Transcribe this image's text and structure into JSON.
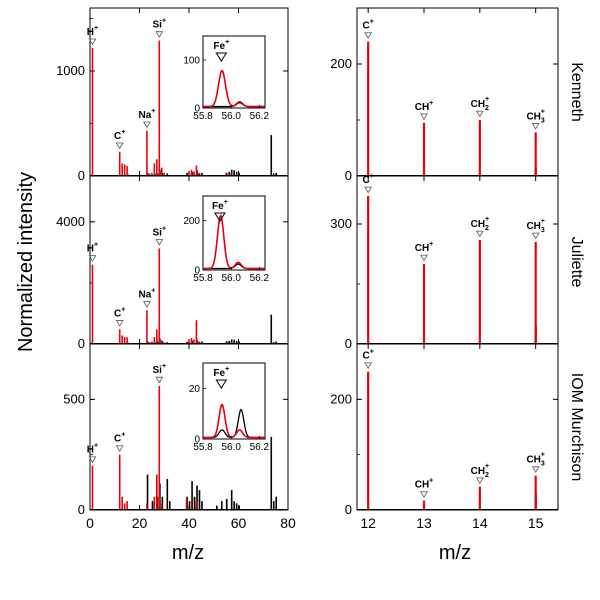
{
  "figure": {
    "ylabel": "Normalized intensity",
    "xlabel_left": "m/z",
    "xlabel_right": "m/z",
    "sample_labels": [
      "Kenneth",
      "Juliette",
      "IOM Murchison"
    ]
  },
  "colors": {
    "sample": "#e8000b",
    "reference": "#000000"
  },
  "chart_data": [
    {
      "type": "bar",
      "panel": "left-1",
      "sample": "Kenneth",
      "xlim": [
        0,
        80
      ],
      "ylim": [
        0,
        1600
      ],
      "yticks": [
        0,
        1000
      ],
      "red_peaks": [
        [
          1,
          1220
        ],
        [
          12,
          230
        ],
        [
          13,
          120
        ],
        [
          14,
          110
        ],
        [
          15,
          95
        ],
        [
          23,
          430
        ],
        [
          24,
          25
        ],
        [
          25,
          30
        ],
        [
          26,
          120
        ],
        [
          27,
          160
        ],
        [
          28,
          1290
        ],
        [
          29,
          80
        ],
        [
          30,
          30
        ],
        [
          40,
          45
        ],
        [
          41,
          60
        ],
        [
          42,
          45
        ],
        [
          43,
          100
        ],
        [
          44,
          30
        ],
        [
          55,
          30
        ],
        [
          57,
          25
        ]
      ],
      "black_peaks": [
        [
          15,
          20
        ],
        [
          23,
          25
        ],
        [
          26,
          20
        ],
        [
          27,
          25
        ],
        [
          28,
          60
        ],
        [
          29,
          30
        ],
        [
          31,
          25
        ],
        [
          39,
          30
        ],
        [
          41,
          40
        ],
        [
          43,
          55
        ],
        [
          44,
          25
        ],
        [
          45,
          30
        ],
        [
          55,
          30
        ],
        [
          56,
          40
        ],
        [
          57,
          60
        ],
        [
          58,
          55
        ],
        [
          59,
          40
        ],
        [
          60,
          30
        ],
        [
          73,
          390
        ],
        [
          74,
          25
        ],
        [
          75,
          30
        ]
      ],
      "labels": [
        {
          "ion": "H",
          "sup": "+",
          "x": 1,
          "y": 1220
        },
        {
          "ion": "C",
          "sup": "+",
          "x": 12,
          "y": 230
        },
        {
          "ion": "Na",
          "sup": "+",
          "x": 23,
          "y": 430
        },
        {
          "ion": "Si",
          "sup": "+",
          "x": 28,
          "y": 1290
        }
      ],
      "inset": {
        "label": "Fe",
        "label_sup": "+",
        "xlim": [
          55.8,
          56.24
        ],
        "ylim": [
          0,
          150
        ],
        "xticks": [
          55.8,
          56.0,
          56.2
        ],
        "yticks": [
          0,
          100
        ],
        "xtick_labels": [
          "55.8",
          "56.0",
          "56.2"
        ],
        "ytick_labels": [
          "0",
          "100"
        ],
        "marker_x": 55.93,
        "red_peaks": [
          {
            "center": 55.935,
            "height": 75,
            "width": 0.035
          },
          {
            "center": 56.06,
            "height": 10,
            "width": 0.03
          }
        ],
        "black_peaks": [
          {
            "center": 56.06,
            "height": 8,
            "width": 0.03
          }
        ]
      }
    },
    {
      "type": "bar",
      "panel": "left-2",
      "sample": "Juliette",
      "xlim": [
        0,
        80
      ],
      "ylim": [
        0,
        5500
      ],
      "yticks": [
        0,
        4000
      ],
      "red_peaks": [
        [
          1,
          2600
        ],
        [
          12,
          480
        ],
        [
          13,
          280
        ],
        [
          14,
          230
        ],
        [
          15,
          220
        ],
        [
          23,
          1100
        ],
        [
          24,
          60
        ],
        [
          25,
          80
        ],
        [
          26,
          230
        ],
        [
          27,
          480
        ],
        [
          28,
          3130
        ],
        [
          29,
          120
        ],
        [
          30,
          45
        ],
        [
          40,
          140
        ],
        [
          41,
          200
        ],
        [
          42,
          150
        ],
        [
          43,
          780
        ],
        [
          44,
          80
        ],
        [
          55,
          70
        ],
        [
          57,
          50
        ]
      ],
      "black_peaks": [
        [
          15,
          60
        ],
        [
          23,
          80
        ],
        [
          26,
          60
        ],
        [
          27,
          90
        ],
        [
          28,
          180
        ],
        [
          29,
          90
        ],
        [
          31,
          60
        ],
        [
          39,
          70
        ],
        [
          41,
          110
        ],
        [
          43,
          140
        ],
        [
          44,
          70
        ],
        [
          45,
          80
        ],
        [
          55,
          90
        ],
        [
          56,
          100
        ],
        [
          57,
          150
        ],
        [
          58,
          140
        ],
        [
          59,
          100
        ],
        [
          60,
          80
        ],
        [
          73,
          960
        ],
        [
          74,
          60
        ],
        [
          75,
          80
        ]
      ],
      "labels": [
        {
          "ion": "H",
          "sup": "+",
          "x": 1,
          "y": 2600
        },
        {
          "ion": "C",
          "sup": "+",
          "x": 12,
          "y": 480
        },
        {
          "ion": "Na",
          "sup": "+",
          "x": 23,
          "y": 1100
        },
        {
          "ion": "Si",
          "sup": "+",
          "x": 28,
          "y": 3130
        }
      ],
      "inset": {
        "label": "Fe",
        "label_sup": "+",
        "xlim": [
          55.8,
          56.24
        ],
        "ylim": [
          0,
          300
        ],
        "xticks": [
          55.8,
          56.0,
          56.2
        ],
        "yticks": [
          0,
          200
        ],
        "xtick_labels": [
          "55.8",
          "56.0",
          "56.2"
        ],
        "ytick_labels": [
          "0",
          "200"
        ],
        "marker_x": 55.92,
        "red_peaks": [
          {
            "center": 55.925,
            "height": 215,
            "width": 0.032
          },
          {
            "center": 56.05,
            "height": 25,
            "width": 0.03
          }
        ],
        "black_peaks": [
          {
            "center": 56.05,
            "height": 18,
            "width": 0.03
          }
        ]
      }
    },
    {
      "type": "bar",
      "panel": "left-3",
      "sample": "IOM Murchison",
      "xlim": [
        0,
        80
      ],
      "ylim": [
        0,
        750
      ],
      "yticks": [
        0,
        500
      ],
      "red_peaks": [
        [
          1,
          200
        ],
        [
          12,
          250
        ],
        [
          13,
          60
        ],
        [
          14,
          30
        ],
        [
          15,
          40
        ],
        [
          23,
          30
        ],
        [
          26,
          60
        ],
        [
          27,
          160
        ],
        [
          28,
          560
        ],
        [
          29,
          30
        ],
        [
          39,
          50
        ],
        [
          43,
          40
        ]
      ],
      "black_peaks": [
        [
          23,
          160
        ],
        [
          25,
          40
        ],
        [
          27,
          60
        ],
        [
          28,
          120
        ],
        [
          29,
          60
        ],
        [
          31,
          140
        ],
        [
          32,
          40
        ],
        [
          39,
          60
        ],
        [
          40,
          40
        ],
        [
          41,
          130
        ],
        [
          42,
          60
        ],
        [
          43,
          110
        ],
        [
          44,
          90
        ],
        [
          45,
          40
        ],
        [
          51,
          20
        ],
        [
          53,
          40
        ],
        [
          55,
          50
        ],
        [
          57,
          90
        ],
        [
          58,
          40
        ],
        [
          59,
          30
        ],
        [
          60,
          20
        ],
        [
          73,
          330
        ],
        [
          74,
          40
        ],
        [
          75,
          60
        ]
      ],
      "labels": [
        {
          "ion": "H",
          "sup": "+",
          "x": 1,
          "y": 200
        },
        {
          "ion": "C",
          "sup": "+",
          "x": 12,
          "y": 250
        },
        {
          "ion": "Si",
          "sup": "+",
          "x": 28,
          "y": 560
        }
      ],
      "inset": {
        "label": "Fe",
        "label_sup": "+",
        "xlim": [
          55.8,
          56.24
        ],
        "ylim": [
          0,
          30
        ],
        "xticks": [
          55.8,
          56.0,
          56.2
        ],
        "yticks": [
          0,
          20
        ],
        "xtick_labels": [
          "55.8",
          "56.0",
          "56.2"
        ],
        "ytick_labels": [
          "0",
          "20"
        ],
        "marker_x": 55.93,
        "red_peaks": [
          {
            "center": 55.935,
            "height": 13,
            "width": 0.03
          },
          {
            "center": 56.06,
            "height": 3,
            "width": 0.03
          }
        ],
        "black_peaks": [
          {
            "center": 55.935,
            "height": 3,
            "width": 0.03
          },
          {
            "center": 56.07,
            "height": 11,
            "width": 0.028
          }
        ]
      }
    },
    {
      "type": "bar",
      "panel": "right-1",
      "sample": "Kenneth",
      "xlim": [
        11.8,
        15.4
      ],
      "ylim": [
        0,
        300
      ],
      "yticks": [
        0,
        200
      ],
      "red_peaks": [
        [
          12,
          240
        ],
        [
          13,
          95
        ],
        [
          14,
          100
        ],
        [
          15,
          78
        ]
      ],
      "black_peaks": [
        [
          15,
          15
        ]
      ],
      "labels": [
        {
          "ion": "C",
          "sup": "+",
          "x": 12,
          "y": 240
        },
        {
          "ion": "CH",
          "sup": "+",
          "x": 13,
          "y": 95
        },
        {
          "ion": "CH",
          "sub": "2",
          "sup": "+",
          "x": 14,
          "y": 100
        },
        {
          "ion": "CH",
          "sub": "3",
          "sup": "+",
          "x": 15,
          "y": 78
        }
      ]
    },
    {
      "type": "bar",
      "panel": "right-2",
      "sample": "Juliette",
      "xlim": [
        11.8,
        15.4
      ],
      "ylim": [
        0,
        420
      ],
      "yticks": [
        0,
        300
      ],
      "red_peaks": [
        [
          12,
          370
        ],
        [
          13,
          200
        ],
        [
          14,
          260
        ],
        [
          15,
          255
        ]
      ],
      "black_peaks": [
        [
          15,
          45
        ]
      ],
      "labels": [
        {
          "ion": "C",
          "sup": "+",
          "x": 12,
          "y": 370
        },
        {
          "ion": "CH",
          "sup": "+",
          "x": 13,
          "y": 200
        },
        {
          "ion": "CH",
          "sub": "2",
          "sup": "+",
          "x": 14,
          "y": 260
        },
        {
          "ion": "CH",
          "sub": "3",
          "sup": "+",
          "x": 15,
          "y": 255
        }
      ]
    },
    {
      "type": "bar",
      "panel": "right-3",
      "sample": "IOM Murchison",
      "xlim": [
        11.8,
        15.4
      ],
      "ylim": [
        0,
        300
      ],
      "yticks": [
        0,
        200
      ],
      "red_peaks": [
        [
          12,
          250
        ],
        [
          13,
          17
        ],
        [
          14,
          42
        ],
        [
          15,
          62
        ]
      ],
      "black_peaks": [
        [
          15,
          30
        ]
      ],
      "labels": [
        {
          "ion": "C",
          "sup": "+",
          "x": 12,
          "y": 250
        },
        {
          "ion": "CH",
          "sup": "+",
          "x": 13,
          "y": 17
        },
        {
          "ion": "CH",
          "sub": "2",
          "sup": "+",
          "x": 14,
          "y": 42
        },
        {
          "ion": "CH",
          "sub": "3",
          "sup": "+",
          "x": 15,
          "y": 62
        }
      ]
    }
  ],
  "bottom_ticks": {
    "left": {
      "values": [
        0,
        20,
        40,
        60,
        80
      ],
      "labels": [
        "0",
        "20",
        "40",
        "60",
        "80"
      ]
    },
    "right": {
      "values": [
        12,
        13,
        14,
        15
      ],
      "labels": [
        "12",
        "13",
        "14",
        "15"
      ]
    }
  }
}
